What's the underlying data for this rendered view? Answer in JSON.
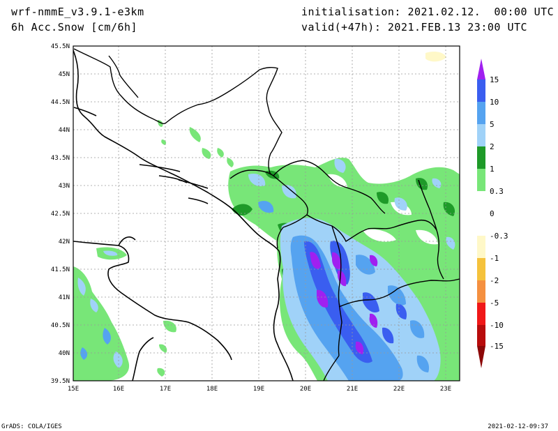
{
  "header": {
    "model": "wrf-nmmE_v3.9.1-e3km",
    "field": "6h Acc.Snow [cm/6h]",
    "init_label": "initialisation:",
    "init_value": "2021.02.12.  00:00 UTC",
    "valid_label": "valid(+47h):",
    "valid_value": "2021.FEB.13 23:00 UTC"
  },
  "map": {
    "lon_ticks": [
      "15E",
      "16E",
      "17E",
      "18E",
      "19E",
      "20E",
      "21E",
      "22E",
      "23E"
    ],
    "lat_ticks": [
      "45.5N",
      "45N",
      "44.5N",
      "44N",
      "43.5N",
      "43N",
      "42.5N",
      "42N",
      "41.5N",
      "41N",
      "40.5N",
      "40N",
      "39.5N"
    ]
  },
  "legend": {
    "levels": [
      "15",
      "10",
      "5",
      "2",
      "1",
      "0.3",
      "0",
      "-0.3",
      "-1",
      "-2",
      "-5",
      "-10",
      "-15"
    ],
    "colors": {
      "purple": "#a020f0",
      "blue": "#3a5ef0",
      "mid_blue": "#55a3f0",
      "light_blue": "#a0d2f8",
      "dark_green": "#1e9a28",
      "light_green": "#78e678",
      "white": "#ffffff",
      "cream": "#fff8c8",
      "yellow": "#f5c23c",
      "orange": "#f59040",
      "red": "#f01818",
      "dark_red": "#b80c0c",
      "maroon": "#8c0808"
    }
  },
  "footer": {
    "left": "GrADS: COLA/IGES",
    "right": "2021-02-12-09:37"
  }
}
